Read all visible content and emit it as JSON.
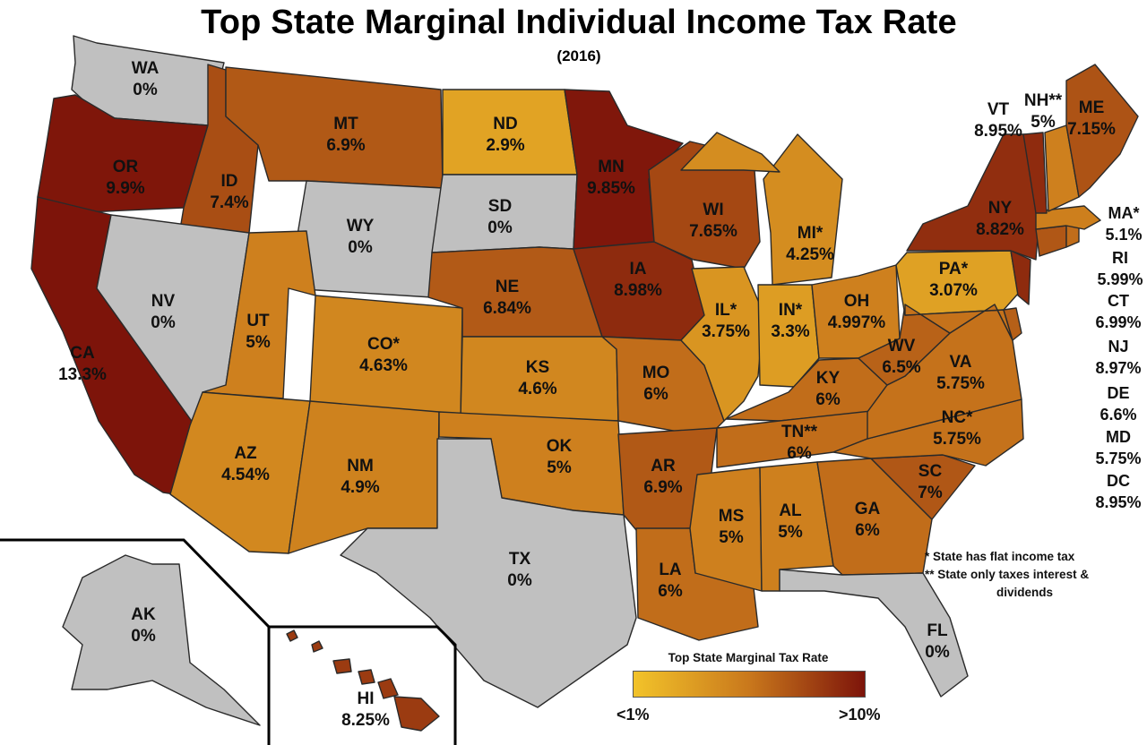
{
  "title": "Top State Marginal Individual Income Tax Rate",
  "subtitle": "(2016)",
  "colors": {
    "scale_low": "#f2c32a",
    "scale_mid": "#c9781c",
    "scale_high": "#7d140a",
    "no_tax": "#c0c0c0",
    "border": "#2a2a2a"
  },
  "states": [
    {
      "abbr": "WA",
      "rate": "0%",
      "value": 0
    },
    {
      "abbr": "OR",
      "rate": "9.9%",
      "value": 9.9
    },
    {
      "abbr": "CA",
      "rate": "13.3%",
      "value": 13.3
    },
    {
      "abbr": "ID",
      "rate": "7.4%",
      "value": 7.4
    },
    {
      "abbr": "NV",
      "rate": "0%",
      "value": 0
    },
    {
      "abbr": "MT",
      "rate": "6.9%",
      "value": 6.9
    },
    {
      "abbr": "WY",
      "rate": "0%",
      "value": 0
    },
    {
      "abbr": "UT",
      "rate": "5%",
      "value": 5
    },
    {
      "abbr": "AZ",
      "rate": "4.54%",
      "value": 4.54
    },
    {
      "abbr": "CO*",
      "rate": "4.63%",
      "value": 4.63
    },
    {
      "abbr": "NM",
      "rate": "4.9%",
      "value": 4.9
    },
    {
      "abbr": "ND",
      "rate": "2.9%",
      "value": 2.9
    },
    {
      "abbr": "SD",
      "rate": "0%",
      "value": 0
    },
    {
      "abbr": "NE",
      "rate": "6.84%",
      "value": 6.84
    },
    {
      "abbr": "KS",
      "rate": "4.6%",
      "value": 4.6
    },
    {
      "abbr": "OK",
      "rate": "5%",
      "value": 5
    },
    {
      "abbr": "TX",
      "rate": "0%",
      "value": 0
    },
    {
      "abbr": "MN",
      "rate": "9.85%",
      "value": 9.85
    },
    {
      "abbr": "IA",
      "rate": "8.98%",
      "value": 8.98
    },
    {
      "abbr": "MO",
      "rate": "6%",
      "value": 6
    },
    {
      "abbr": "AR",
      "rate": "6.9%",
      "value": 6.9
    },
    {
      "abbr": "LA",
      "rate": "6%",
      "value": 6
    },
    {
      "abbr": "WI",
      "rate": "7.65%",
      "value": 7.65
    },
    {
      "abbr": "IL*",
      "rate": "3.75%",
      "value": 3.75
    },
    {
      "abbr": "MI*",
      "rate": "4.25%",
      "value": 4.25
    },
    {
      "abbr": "IN*",
      "rate": "3.3%",
      "value": 3.3
    },
    {
      "abbr": "OH",
      "rate": "4.997%",
      "value": 4.997
    },
    {
      "abbr": "KY",
      "rate": "6%",
      "value": 6
    },
    {
      "abbr": "TN**",
      "rate": "6%",
      "value": 6
    },
    {
      "abbr": "MS",
      "rate": "5%",
      "value": 5
    },
    {
      "abbr": "AL",
      "rate": "5%",
      "value": 5
    },
    {
      "abbr": "GA",
      "rate": "6%",
      "value": 6
    },
    {
      "abbr": "FL",
      "rate": "0%",
      "value": 0
    },
    {
      "abbr": "SC",
      "rate": "7%",
      "value": 7
    },
    {
      "abbr": "NC*",
      "rate": "5.75%",
      "value": 5.75
    },
    {
      "abbr": "VA",
      "rate": "5.75%",
      "value": 5.75
    },
    {
      "abbr": "WV",
      "rate": "6.5%",
      "value": 6.5
    },
    {
      "abbr": "PA*",
      "rate": "3.07%",
      "value": 3.07
    },
    {
      "abbr": "NY",
      "rate": "8.82%",
      "value": 8.82
    },
    {
      "abbr": "VT",
      "rate": "8.95%",
      "value": 8.95
    },
    {
      "abbr": "NH**",
      "rate": "5%",
      "value": 5
    },
    {
      "abbr": "ME",
      "rate": "7.15%",
      "value": 7.15
    },
    {
      "abbr": "AK",
      "rate": "0%",
      "value": 0
    },
    {
      "abbr": "HI",
      "rate": "8.25%",
      "value": 8.25
    }
  ],
  "side_states": [
    {
      "abbr": "MA*",
      "rate": "5.1%",
      "value": 5.1
    },
    {
      "abbr": "RI",
      "rate": "5.99%",
      "value": 5.99
    },
    {
      "abbr": "CT",
      "rate": "6.99%",
      "value": 6.99
    },
    {
      "abbr": "NJ",
      "rate": "8.97%",
      "value": 8.97
    },
    {
      "abbr": "DE",
      "rate": "6.6%",
      "value": 6.6
    },
    {
      "abbr": "MD",
      "rate": "5.75%",
      "value": 5.75
    },
    {
      "abbr": "DC",
      "rate": "8.95%",
      "value": 8.95
    }
  ],
  "footnotes": {
    "flat": "* State has flat income tax",
    "interest_line1": "** State only taxes interest &",
    "interest_line2": "dividends"
  },
  "legend": {
    "title": "Top State Marginal Tax Rate",
    "low_label": "<1%",
    "high_label": ">10%"
  }
}
